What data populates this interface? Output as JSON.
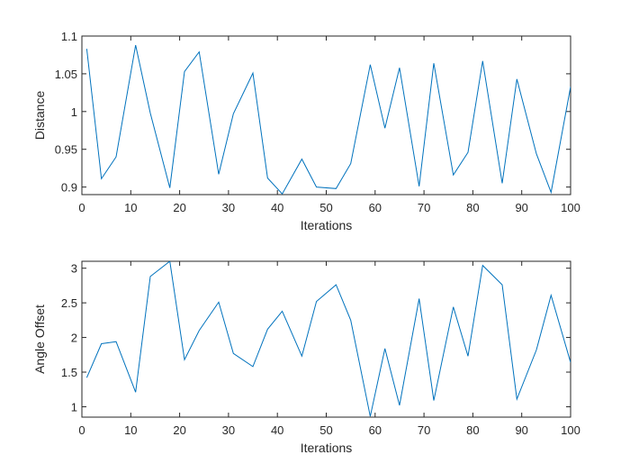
{
  "colors": {
    "series": "#0072bd",
    "axes": "#262626",
    "background": "#ffffff"
  },
  "chart_data": [
    {
      "type": "line",
      "title": "",
      "xlabel": "Iterations",
      "ylabel": "Distance",
      "xlim": [
        0,
        100
      ],
      "ylim": [
        0.89,
        1.1
      ],
      "xticks": [
        0,
        10,
        20,
        30,
        40,
        50,
        60,
        70,
        80,
        90,
        100
      ],
      "xtick_labels": [
        "0",
        "10",
        "20",
        "30",
        "40",
        "50",
        "60",
        "70",
        "80",
        "90",
        "100"
      ],
      "yticks": [
        0.9,
        0.95,
        1.0,
        1.05,
        1.1
      ],
      "ytick_labels": [
        "0.9",
        "0.95",
        "1",
        "1.05",
        "1.1"
      ],
      "grid": false,
      "series": [
        {
          "x": [
            1,
            4,
            7,
            11,
            14,
            18,
            21,
            24,
            28,
            31,
            35,
            38,
            41,
            45,
            48,
            52,
            55,
            59,
            62,
            65,
            69,
            72,
            76,
            79,
            82,
            86,
            89,
            93,
            96,
            100
          ],
          "y": [
            1.083,
            0.911,
            0.94,
            1.088,
            0.998,
            0.899,
            1.053,
            1.079,
            0.917,
            0.997,
            1.051,
            0.912,
            0.891,
            0.937,
            0.9,
            0.898,
            0.931,
            1.062,
            0.978,
            1.058,
            0.901,
            1.064,
            0.916,
            0.946,
            1.067,
            0.905,
            1.043,
            0.944,
            0.893,
            1.033
          ]
        }
      ]
    },
    {
      "type": "line",
      "title": "",
      "xlabel": "Iterations",
      "ylabel": "Angle Offset",
      "xlim": [
        0,
        100
      ],
      "ylim": [
        0.85,
        3.1
      ],
      "xticks": [
        0,
        10,
        20,
        30,
        40,
        50,
        60,
        70,
        80,
        90,
        100
      ],
      "xtick_labels": [
        "0",
        "10",
        "20",
        "30",
        "40",
        "50",
        "60",
        "70",
        "80",
        "90",
        "100"
      ],
      "yticks": [
        1,
        1.5,
        2,
        2.5,
        3
      ],
      "ytick_labels": [
        "1",
        "1.5",
        "2",
        "2.5",
        "3"
      ],
      "grid": false,
      "series": [
        {
          "x": [
            1,
            4,
            7,
            11,
            14,
            18,
            21,
            24,
            28,
            31,
            35,
            38,
            41,
            45,
            48,
            52,
            55,
            59,
            62,
            65,
            69,
            72,
            76,
            79,
            82,
            86,
            89,
            93,
            96,
            100
          ],
          "y": [
            1.42,
            1.91,
            1.94,
            1.21,
            2.88,
            3.1,
            1.68,
            2.1,
            2.51,
            1.77,
            1.58,
            2.12,
            2.38,
            1.73,
            2.52,
            2.76,
            2.25,
            0.86,
            1.84,
            1.02,
            2.56,
            1.09,
            2.44,
            1.73,
            3.04,
            2.76,
            1.11,
            1.82,
            2.61,
            1.64
          ]
        }
      ]
    }
  ]
}
